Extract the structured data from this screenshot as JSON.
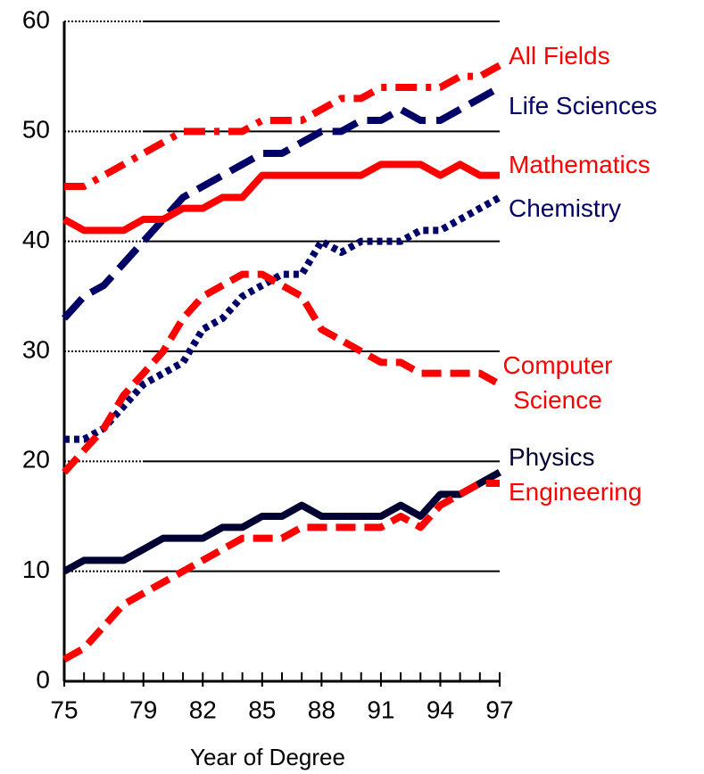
{
  "chart_data": {
    "type": "line",
    "xlabel": "Year of Degree",
    "x": [
      75,
      76,
      77,
      78,
      79,
      80,
      81,
      82,
      83,
      84,
      85,
      86,
      87,
      88,
      89,
      90,
      91,
      92,
      93,
      94,
      95,
      96,
      97
    ],
    "xlim": [
      75,
      97
    ],
    "xticks": [
      75,
      79,
      82,
      85,
      88,
      91,
      94,
      97
    ],
    "ylim": [
      0,
      60
    ],
    "yticks": [
      0,
      10,
      20,
      30,
      40,
      50,
      60
    ],
    "grid": true,
    "series": [
      {
        "name": "All Fields",
        "color": "#ff0000",
        "linestyle": "dashdot",
        "values": [
          45,
          45,
          46,
          47,
          48,
          49,
          50,
          50,
          50,
          50,
          51,
          51,
          51,
          52,
          53,
          53,
          54,
          54,
          54,
          54,
          55,
          55,
          56
        ]
      },
      {
        "name": "Life Sciences",
        "color": "#000066",
        "linestyle": "longdash",
        "values": [
          33,
          35,
          36,
          38,
          40,
          42,
          44,
          45,
          46,
          47,
          48,
          48,
          49,
          50,
          50,
          51,
          51,
          52,
          51,
          51,
          52,
          53,
          54
        ]
      },
      {
        "name": "Mathematics",
        "color": "#ff0000",
        "linestyle": "solid",
        "values": [
          42,
          41,
          41,
          41,
          42,
          42,
          43,
          43,
          44,
          44,
          46,
          46,
          46,
          46,
          46,
          46,
          47,
          47,
          47,
          46,
          47,
          46,
          46
        ]
      },
      {
        "name": "Chemistry",
        "color": "#000066",
        "linestyle": "dotted",
        "values": [
          22,
          22,
          23,
          25,
          27,
          28,
          29,
          32,
          33,
          35,
          36,
          37,
          37,
          40,
          39,
          40,
          40,
          40,
          41,
          41,
          42,
          43,
          44
        ]
      },
      {
        "name": "Computer Science",
        "color": "#ff0000",
        "linestyle": "dashed",
        "values": [
          19,
          21,
          23,
          26,
          28,
          30,
          33,
          35,
          36,
          37,
          37,
          36,
          35,
          32,
          31,
          30,
          29,
          29,
          28,
          28,
          28,
          28,
          27
        ]
      },
      {
        "name": "Physics",
        "color": "#000033",
        "linestyle": "solid",
        "values": [
          10,
          11,
          11,
          11,
          12,
          13,
          13,
          13,
          14,
          14,
          15,
          15,
          16,
          15,
          15,
          15,
          15,
          16,
          15,
          17,
          17,
          18,
          19
        ]
      },
      {
        "name": "Engineering",
        "color": "#ff0000",
        "linestyle": "dashed",
        "values": [
          2,
          3,
          5,
          7,
          8,
          9,
          10,
          11,
          12,
          13,
          13,
          13,
          14,
          14,
          14,
          14,
          14,
          15,
          14,
          16,
          17,
          18,
          18
        ]
      }
    ]
  }
}
